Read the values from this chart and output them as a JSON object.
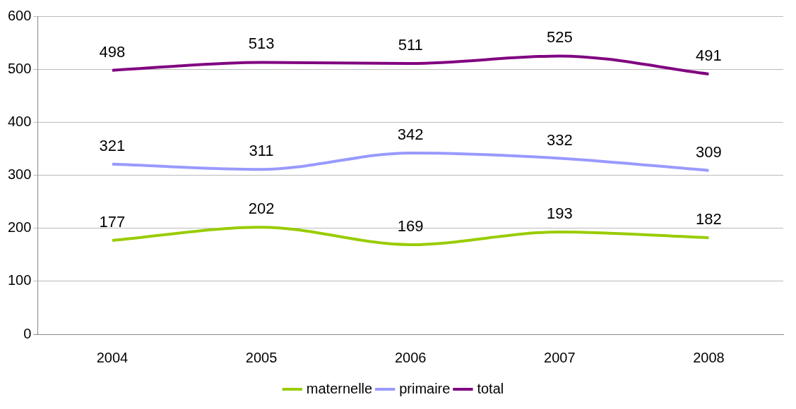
{
  "chart_data": {
    "type": "line",
    "categories": [
      "2004",
      "2005",
      "2006",
      "2007",
      "2008"
    ],
    "series": [
      {
        "name": "maternelle",
        "color": "#99cc00",
        "values": [
          177,
          202,
          169,
          193,
          182
        ]
      },
      {
        "name": "primaire",
        "color": "#9999ff",
        "values": [
          321,
          311,
          342,
          332,
          309
        ]
      },
      {
        "name": "total",
        "color": "#800080",
        "values": [
          498,
          513,
          511,
          525,
          491
        ]
      }
    ],
    "ylim": [
      0,
      600
    ],
    "yticks": [
      0,
      100,
      200,
      300,
      400,
      500,
      600
    ],
    "grid": "y",
    "legend": "bottom",
    "data_labels": true,
    "marker": "none",
    "line_style": "solid"
  }
}
